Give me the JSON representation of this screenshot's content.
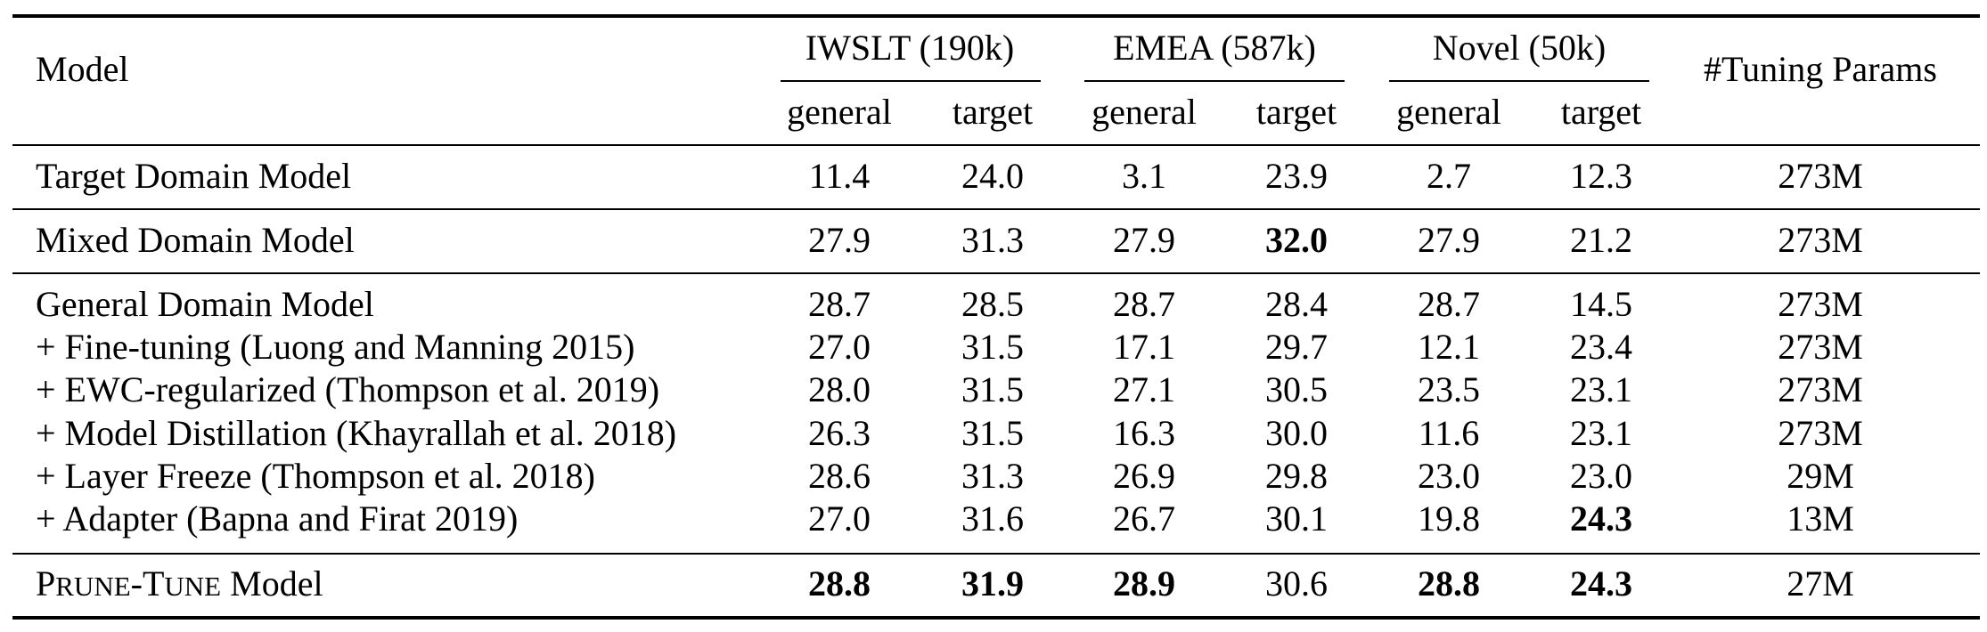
{
  "table": {
    "header": {
      "model": "Model",
      "groups": [
        {
          "label": "IWSLT (190k)",
          "sub": [
            "general",
            "target"
          ]
        },
        {
          "label": "EMEA (587k)",
          "sub": [
            "general",
            "target"
          ]
        },
        {
          "label": "Novel (50k)",
          "sub": [
            "general",
            "target"
          ]
        }
      ],
      "params": "#Tuning Params"
    },
    "rows": [
      {
        "model": "Target Domain Model",
        "values": [
          "11.4",
          "24.0",
          "3.1",
          "23.9",
          "2.7",
          "12.3"
        ],
        "params": "273M",
        "bold": []
      },
      {
        "model": "Mixed Domain Model",
        "values": [
          "27.9",
          "31.3",
          "27.9",
          "32.0",
          "27.9",
          "21.2"
        ],
        "params": "273M",
        "bold": [
          3
        ]
      },
      {
        "model": "General Domain Model",
        "values": [
          "28.7",
          "28.5",
          "28.7",
          "28.4",
          "28.7",
          "14.5"
        ],
        "params": "273M",
        "bold": []
      },
      {
        "model": "+ Fine-tuning (Luong and Manning 2015)",
        "values": [
          "27.0",
          "31.5",
          "17.1",
          "29.7",
          "12.1",
          "23.4"
        ],
        "params": "273M",
        "bold": []
      },
      {
        "model": "+ EWC-regularized (Thompson et al. 2019)",
        "values": [
          "28.0",
          "31.5",
          "27.1",
          "30.5",
          "23.5",
          "23.1"
        ],
        "params": "273M",
        "bold": []
      },
      {
        "model": "+ Model Distillation (Khayrallah et al. 2018)",
        "values": [
          "26.3",
          "31.5",
          "16.3",
          "30.0",
          "11.6",
          "23.1"
        ],
        "params": "273M",
        "bold": []
      },
      {
        "model": "+ Layer Freeze (Thompson et al. 2018)",
        "values": [
          "28.6",
          "31.3",
          "26.9",
          "29.8",
          "23.0",
          "23.0"
        ],
        "params": "29M",
        "bold": []
      },
      {
        "model": "+ Adapter (Bapna and Firat 2019)",
        "values": [
          "27.0",
          "31.6",
          "26.7",
          "30.1",
          "19.8",
          "24.3"
        ],
        "params": "13M",
        "bold": [
          5
        ]
      }
    ],
    "final_row": {
      "name_caps": [
        {
          "big": "P",
          "small": "RUNE"
        },
        {
          "big": "-T",
          "small": "UNE"
        }
      ],
      "name_suffix": " Model",
      "values": [
        "28.8",
        "31.9",
        "28.9",
        "30.6",
        "28.8",
        "24.3"
      ],
      "params": "27M",
      "bold": [
        0,
        1,
        2,
        4,
        5
      ]
    }
  }
}
